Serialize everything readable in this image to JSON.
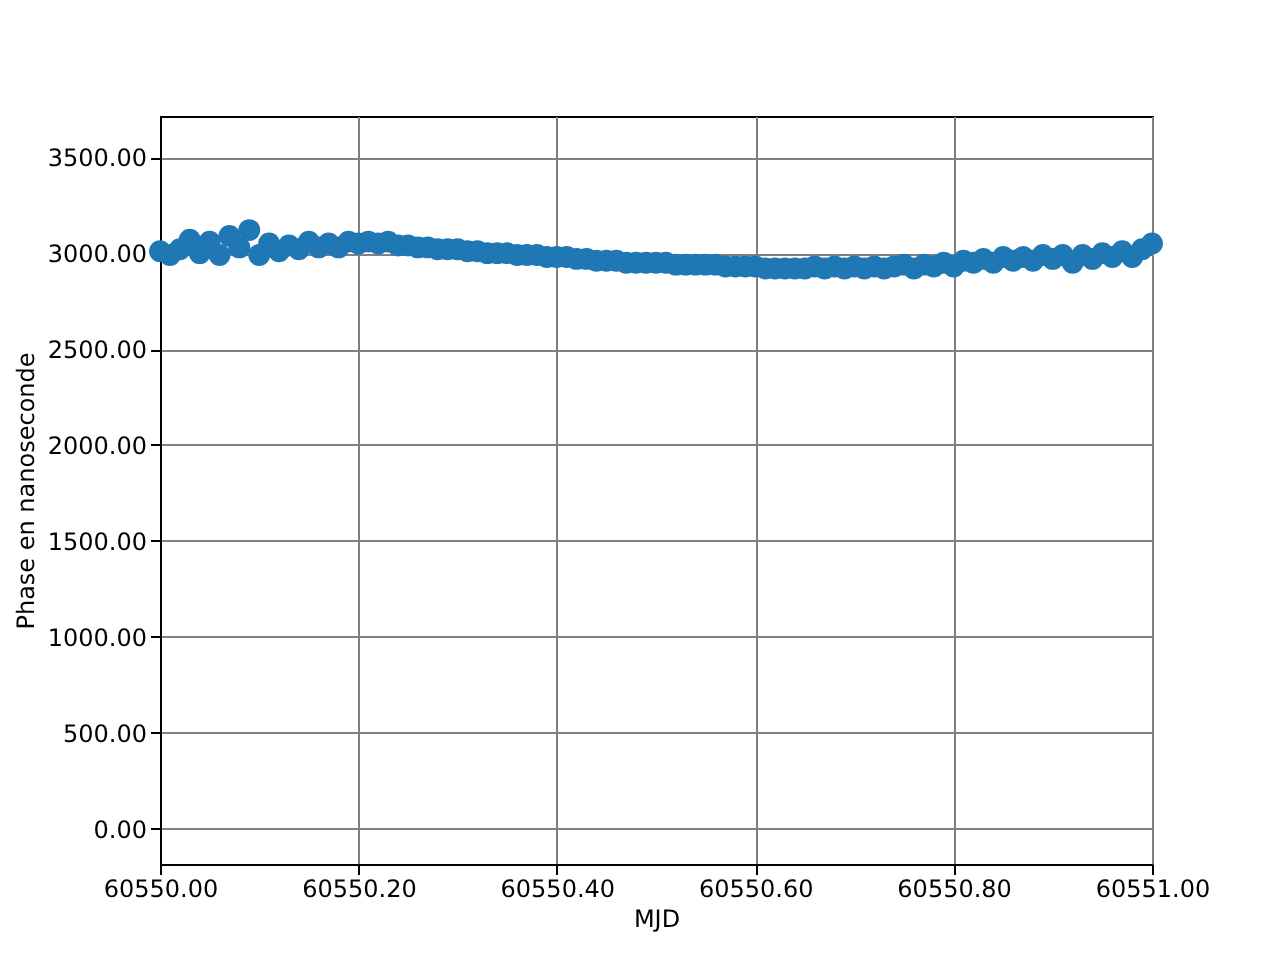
{
  "chart_data": {
    "type": "scatter",
    "xlabel": "MJD",
    "ylabel": "Phase en nanoseconde",
    "x": [
      60550.0,
      60550.01,
      60550.02,
      60550.03,
      60550.04,
      60550.05,
      60550.06,
      60550.07,
      60550.08,
      60550.09,
      60550.1,
      60550.11,
      60550.12,
      60550.13,
      60550.14,
      60550.15,
      60550.16,
      60550.17,
      60550.18,
      60550.19,
      60550.2,
      60550.21,
      60550.22,
      60550.23,
      60550.24,
      60550.25,
      60550.26,
      60550.27,
      60550.28,
      60550.29,
      60550.3,
      60550.31,
      60550.32,
      60550.33,
      60550.34,
      60550.35,
      60550.36,
      60550.37,
      60550.38,
      60550.39,
      60550.4,
      60550.41,
      60550.42,
      60550.43,
      60550.44,
      60550.45,
      60550.46,
      60550.47,
      60550.48,
      60550.49,
      60550.5,
      60550.51,
      60550.52,
      60550.53,
      60550.54,
      60550.55,
      60550.56,
      60550.57,
      60550.58,
      60550.59,
      60550.6,
      60550.61,
      60550.62,
      60550.63,
      60550.64,
      60550.65,
      60550.66,
      60550.67,
      60550.68,
      60550.69,
      60550.7,
      60550.71,
      60550.72,
      60550.73,
      60550.74,
      60550.75,
      60550.76,
      60550.77,
      60550.78,
      60550.79,
      60550.8,
      60550.81,
      60550.82,
      60550.83,
      60550.84,
      60550.85,
      60550.86,
      60550.87,
      60550.88,
      60550.89,
      60550.9,
      60550.91,
      60550.92,
      60550.93,
      60550.94,
      60550.95,
      60550.96,
      60550.97,
      60550.98,
      60550.99,
      60551.0
    ],
    "series": [
      {
        "color": "#1f77b4",
        "values": [
          3010,
          2990,
          3020,
          3070,
          3000,
          3060,
          2990,
          3090,
          3030,
          3120,
          2990,
          3050,
          3010,
          3040,
          3020,
          3060,
          3030,
          3050,
          3030,
          3060,
          3050,
          3060,
          3050,
          3060,
          3040,
          3040,
          3030,
          3030,
          3020,
          3020,
          3020,
          3010,
          3010,
          3000,
          3000,
          3000,
          2990,
          2990,
          2990,
          2980,
          2980,
          2980,
          2970,
          2970,
          2960,
          2960,
          2960,
          2950,
          2950,
          2950,
          2950,
          2950,
          2940,
          2940,
          2940,
          2940,
          2940,
          2930,
          2930,
          2930,
          2930,
          2920,
          2920,
          2920,
          2920,
          2920,
          2930,
          2920,
          2930,
          2920,
          2930,
          2920,
          2930,
          2920,
          2930,
          2940,
          2920,
          2940,
          2930,
          2950,
          2930,
          2960,
          2950,
          2970,
          2950,
          2980,
          2960,
          2980,
          2960,
          2990,
          2970,
          2990,
          2950,
          2990,
          2970,
          3000,
          2980,
          3010,
          2980,
          3020,
          3050
        ]
      }
    ],
    "xlim": [
      60550.0,
      60551.0
    ],
    "xticks": [
      {
        "value": 60550.0,
        "label": "60550.00"
      },
      {
        "value": 60550.2,
        "label": "60550.20"
      },
      {
        "value": 60550.4,
        "label": "60550.40"
      },
      {
        "value": 60550.6,
        "label": "60550.60"
      },
      {
        "value": 60550.8,
        "label": "60550.80"
      },
      {
        "value": 60551.0,
        "label": "60551.00"
      }
    ],
    "ylim": [
      -185,
      3715
    ],
    "yticks": [
      {
        "value": 0,
        "label": "0.00"
      },
      {
        "value": 500,
        "label": "500.00"
      },
      {
        "value": 1000,
        "label": "1000.00"
      },
      {
        "value": 1500,
        "label": "1500.00"
      },
      {
        "value": 2000,
        "label": "2000.00"
      },
      {
        "value": 2500,
        "label": "2500.00"
      },
      {
        "value": 3000,
        "label": "3000.00"
      },
      {
        "value": 3500,
        "label": "3500.00"
      }
    ],
    "grid": true,
    "marker": "circle"
  }
}
